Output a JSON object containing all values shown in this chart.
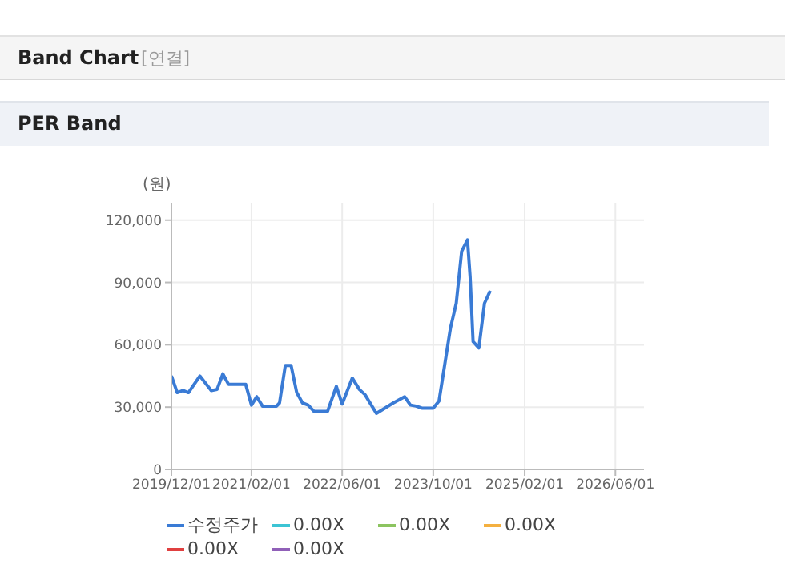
{
  "chart_data": {
    "type": "line",
    "title": "Band Chart",
    "subtitle": "PER Band",
    "annotations": [
      "[연결]"
    ],
    "ylabel": "(원)",
    "x": [
      "2019-12-01",
      "2020-01-01",
      "2020-02-01",
      "2020-03-01",
      "2020-05-01",
      "2020-07-01",
      "2020-08-01",
      "2020-09-01",
      "2020-10-01",
      "2021-01-01",
      "2021-02-01",
      "2021-03-01",
      "2021-04-01",
      "2021-06-15",
      "2021-07-01",
      "2021-08-01",
      "2021-09-01",
      "2021-10-01",
      "2021-11-01",
      "2021-12-01",
      "2022-01-01",
      "2022-03-15",
      "2022-05-01",
      "2022-06-01",
      "2022-07-25",
      "2022-09-01",
      "2022-10-01",
      "2022-12-01",
      "2023-01-15",
      "2023-03-01",
      "2023-05-01",
      "2023-06-01",
      "2023-07-01",
      "2023-08-01",
      "2023-10-01",
      "2023-11-01",
      "2024-01-01",
      "2024-02-01",
      "2024-03-01",
      "2024-04-01",
      "2024-04-15",
      "2024-05-01",
      "2024-06-01",
      "2024-07-01",
      "2024-08-01"
    ],
    "series": [
      {
        "name": "수정주가",
        "color": "#3a7bd5",
        "values": [
          45000,
          37000,
          38000,
          37000,
          45000,
          38000,
          38500,
          46000,
          41000,
          41000,
          31000,
          35000,
          30500,
          30500,
          32000,
          50000,
          50000,
          37000,
          32000,
          31000,
          28000,
          28000,
          40000,
          31500,
          44000,
          38500,
          36000,
          27000,
          29500,
          32000,
          35000,
          31000,
          30500,
          29500,
          29500,
          33000,
          68000,
          80000,
          105000,
          110500,
          93000,
          61500,
          58500,
          80000,
          86000
        ]
      },
      {
        "name": "0.00X",
        "color": "#3cc4d4",
        "values": [
          null,
          null,
          null,
          null,
          null,
          null,
          null,
          null,
          null,
          null,
          null,
          null,
          null,
          null,
          null,
          null,
          null,
          null,
          null,
          null,
          null,
          null,
          null,
          null,
          null,
          null,
          null,
          null,
          null,
          null,
          null,
          null,
          null,
          null,
          null,
          null,
          null,
          null,
          null,
          null,
          null,
          null,
          null,
          null,
          null
        ]
      },
      {
        "name": "0.00X",
        "color": "#8cc460",
        "values": [
          null,
          null,
          null,
          null,
          null,
          null,
          null,
          null,
          null,
          null,
          null,
          null,
          null,
          null,
          null,
          null,
          null,
          null,
          null,
          null,
          null,
          null,
          null,
          null,
          null,
          null,
          null,
          null,
          null,
          null,
          null,
          null,
          null,
          null,
          null,
          null,
          null,
          null,
          null,
          null,
          null,
          null,
          null,
          null,
          null
        ]
      },
      {
        "name": "0.00X",
        "color": "#f4b040",
        "values": [
          null,
          null,
          null,
          null,
          null,
          null,
          null,
          null,
          null,
          null,
          null,
          null,
          null,
          null,
          null,
          null,
          null,
          null,
          null,
          null,
          null,
          null,
          null,
          null,
          null,
          null,
          null,
          null,
          null,
          null,
          null,
          null,
          null,
          null,
          null,
          null,
          null,
          null,
          null,
          null,
          null,
          null,
          null,
          null,
          null
        ]
      },
      {
        "name": "0.00X",
        "color": "#e04040",
        "values": [
          null,
          null,
          null,
          null,
          null,
          null,
          null,
          null,
          null,
          null,
          null,
          null,
          null,
          null,
          null,
          null,
          null,
          null,
          null,
          null,
          null,
          null,
          null,
          null,
          null,
          null,
          null,
          null,
          null,
          null,
          null,
          null,
          null,
          null,
          null,
          null,
          null,
          null,
          null,
          null,
          null,
          null,
          null,
          null,
          null
        ]
      },
      {
        "name": "0.00X",
        "color": "#9060b8",
        "values": [
          null,
          null,
          null,
          null,
          null,
          null,
          null,
          null,
          null,
          null,
          null,
          null,
          null,
          null,
          null,
          null,
          null,
          null,
          null,
          null,
          null,
          null,
          null,
          null,
          null,
          null,
          null,
          null,
          null,
          null,
          null,
          null,
          null,
          null,
          null,
          null,
          null,
          null,
          null,
          null,
          null,
          null,
          null,
          null,
          null
        ]
      }
    ],
    "xlim": [
      "2019-12-01",
      "2026-11-01"
    ],
    "xticks": [
      {
        "value": "2019-12-01",
        "label": "2019/12/01"
      },
      {
        "value": "2021-02-01",
        "label": "2021/02/01"
      },
      {
        "value": "2022-06-01",
        "label": "2022/06/01"
      },
      {
        "value": "2023-10-01",
        "label": "2023/10/01"
      },
      {
        "value": "2025-02-01",
        "label": "2025/02/01"
      },
      {
        "value": "2026-06-01",
        "label": "2026/06/01"
      }
    ],
    "ylim": [
      0,
      128000
    ],
    "yticks": [
      0,
      {
        "value": 30000,
        "label": "30,000"
      },
      {
        "value": 60000,
        "label": "60,000"
      },
      {
        "value": 90000,
        "label": "90,000"
      },
      {
        "value": 120000,
        "label": "120,000"
      }
    ],
    "grid": true,
    "legend": "bottom",
    "marker": "none",
    "line_style": "solid"
  }
}
